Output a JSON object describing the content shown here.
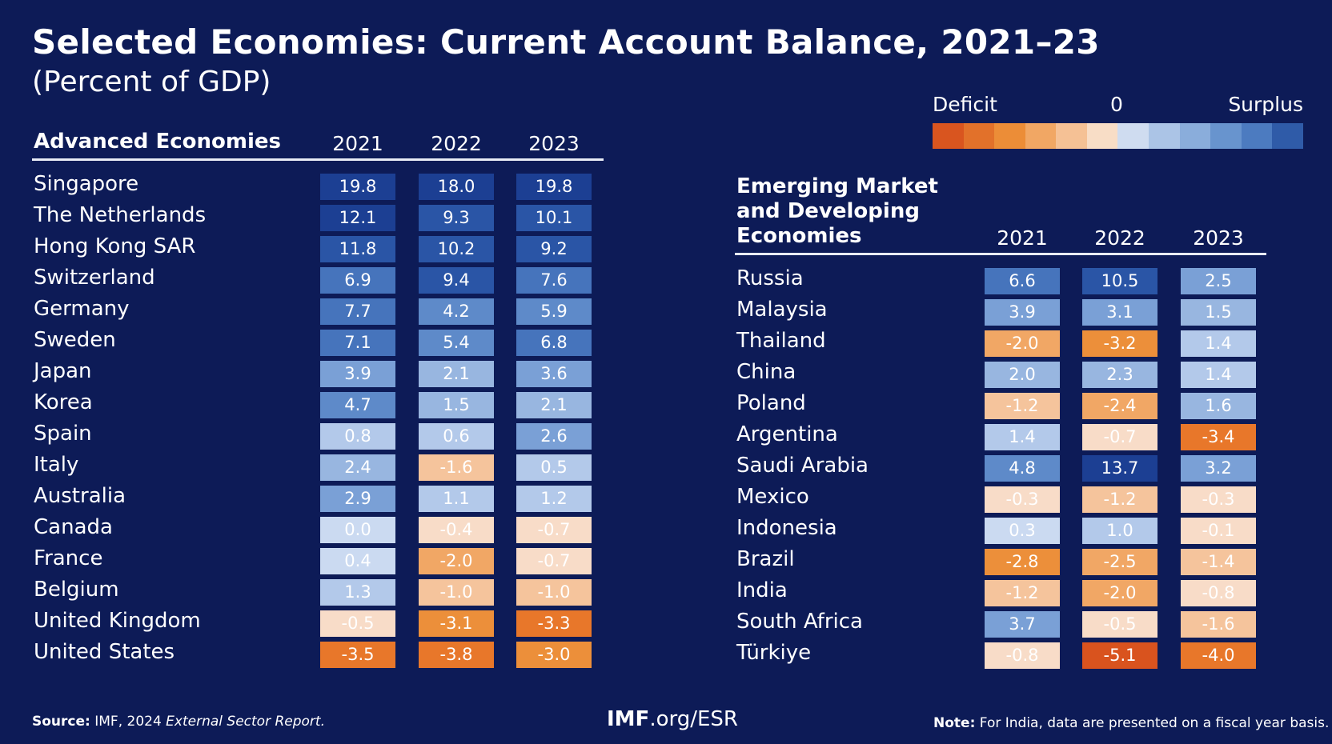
{
  "title": "Selected Economies: Current Account Balance, 2021–23",
  "subtitle": "(Percent of GDP)",
  "legend": {
    "deficit_label": "Deficit",
    "zero_label": "0",
    "surplus_label": "Surplus",
    "colors": [
      "#d9551f",
      "#e2712a",
      "#ec8d37",
      "#f1a764",
      "#f5c195",
      "#f8ddc6",
      "#cfdcf0",
      "#abc4e6",
      "#8aaddb",
      "#6894ce",
      "#4c7bc0",
      "#2f5ba8"
    ]
  },
  "chart_data": [
    {
      "type": "table",
      "section_title": "Advanced Economies",
      "years": [
        "2021",
        "2022",
        "2023"
      ],
      "rows": [
        {
          "country": "Singapore",
          "values": [
            "19.8",
            "18.0",
            "19.8"
          ]
        },
        {
          "country": "The Netherlands",
          "values": [
            "12.1",
            "9.3",
            "10.1"
          ]
        },
        {
          "country": "Hong Kong SAR",
          "values": [
            "11.8",
            "10.2",
            "9.2"
          ]
        },
        {
          "country": "Switzerland",
          "values": [
            "6.9",
            "9.4",
            "7.6"
          ]
        },
        {
          "country": "Germany",
          "values": [
            "7.7",
            "4.2",
            "5.9"
          ]
        },
        {
          "country": "Sweden",
          "values": [
            "7.1",
            "5.4",
            "6.8"
          ]
        },
        {
          "country": "Japan",
          "values": [
            "3.9",
            "2.1",
            "3.6"
          ]
        },
        {
          "country": "Korea",
          "values": [
            "4.7",
            "1.5",
            "2.1"
          ]
        },
        {
          "country": "Spain",
          "values": [
            "0.8",
            "0.6",
            "2.6"
          ]
        },
        {
          "country": "Italy",
          "values": [
            "2.4",
            "-1.6",
            "0.5"
          ]
        },
        {
          "country": "Australia",
          "values": [
            "2.9",
            "1.1",
            "1.2"
          ]
        },
        {
          "country": "Canada",
          "values": [
            "0.0",
            "-0.4",
            "-0.7"
          ]
        },
        {
          "country": "France",
          "values": [
            "0.4",
            "-2.0",
            "-0.7"
          ]
        },
        {
          "country": "Belgium",
          "values": [
            "1.3",
            "-1.0",
            "-1.0"
          ]
        },
        {
          "country": "United Kingdom",
          "values": [
            "-0.5",
            "-3.1",
            "-3.3"
          ]
        },
        {
          "country": "United States",
          "values": [
            "-3.5",
            "-3.8",
            "-3.0"
          ]
        }
      ]
    },
    {
      "type": "table",
      "section_title_lines": [
        "Emerging Market",
        "and Developing",
        "Economies"
      ],
      "years": [
        "2021",
        "2022",
        "2023"
      ],
      "rows": [
        {
          "country": "Russia",
          "values": [
            "6.6",
            "10.5",
            "2.5"
          ]
        },
        {
          "country": "Malaysia",
          "values": [
            "3.9",
            "3.1",
            "1.5"
          ]
        },
        {
          "country": "Thailand",
          "values": [
            "-2.0",
            "-3.2",
            "1.4"
          ]
        },
        {
          "country": "China",
          "values": [
            "2.0",
            "2.3",
            "1.4"
          ]
        },
        {
          "country": "Poland",
          "values": [
            "-1.2",
            "-2.4",
            "1.6"
          ]
        },
        {
          "country": "Argentina",
          "values": [
            "1.4",
            "-0.7",
            "-3.4"
          ]
        },
        {
          "country": "Saudi Arabia",
          "values": [
            "4.8",
            "13.7",
            "3.2"
          ]
        },
        {
          "country": "Mexico",
          "values": [
            "-0.3",
            "-1.2",
            "-0.3"
          ]
        },
        {
          "country": "Indonesia",
          "values": [
            "0.3",
            "1.0",
            "-0.1"
          ]
        },
        {
          "country": "Brazil",
          "values": [
            "-2.8",
            "-2.5",
            "-1.4"
          ]
        },
        {
          "country": "India",
          "values": [
            "-1.2",
            "-2.0",
            "-0.8"
          ]
        },
        {
          "country": "South Africa",
          "values": [
            "3.7",
            "-0.5",
            "-1.6"
          ]
        },
        {
          "country": "Türkiye",
          "values": [
            "-0.8",
            "-5.1",
            "-4.0"
          ]
        }
      ]
    }
  ],
  "footer": {
    "source_label": "Source:",
    "source_text": "IMF, 2024",
    "source_title": "External Sector Report.",
    "site_bold": "IMF",
    "site_rest": ".org/ESR",
    "note_label": "Note:",
    "note_text": "For India, data are presented on a fiscal year basis."
  }
}
